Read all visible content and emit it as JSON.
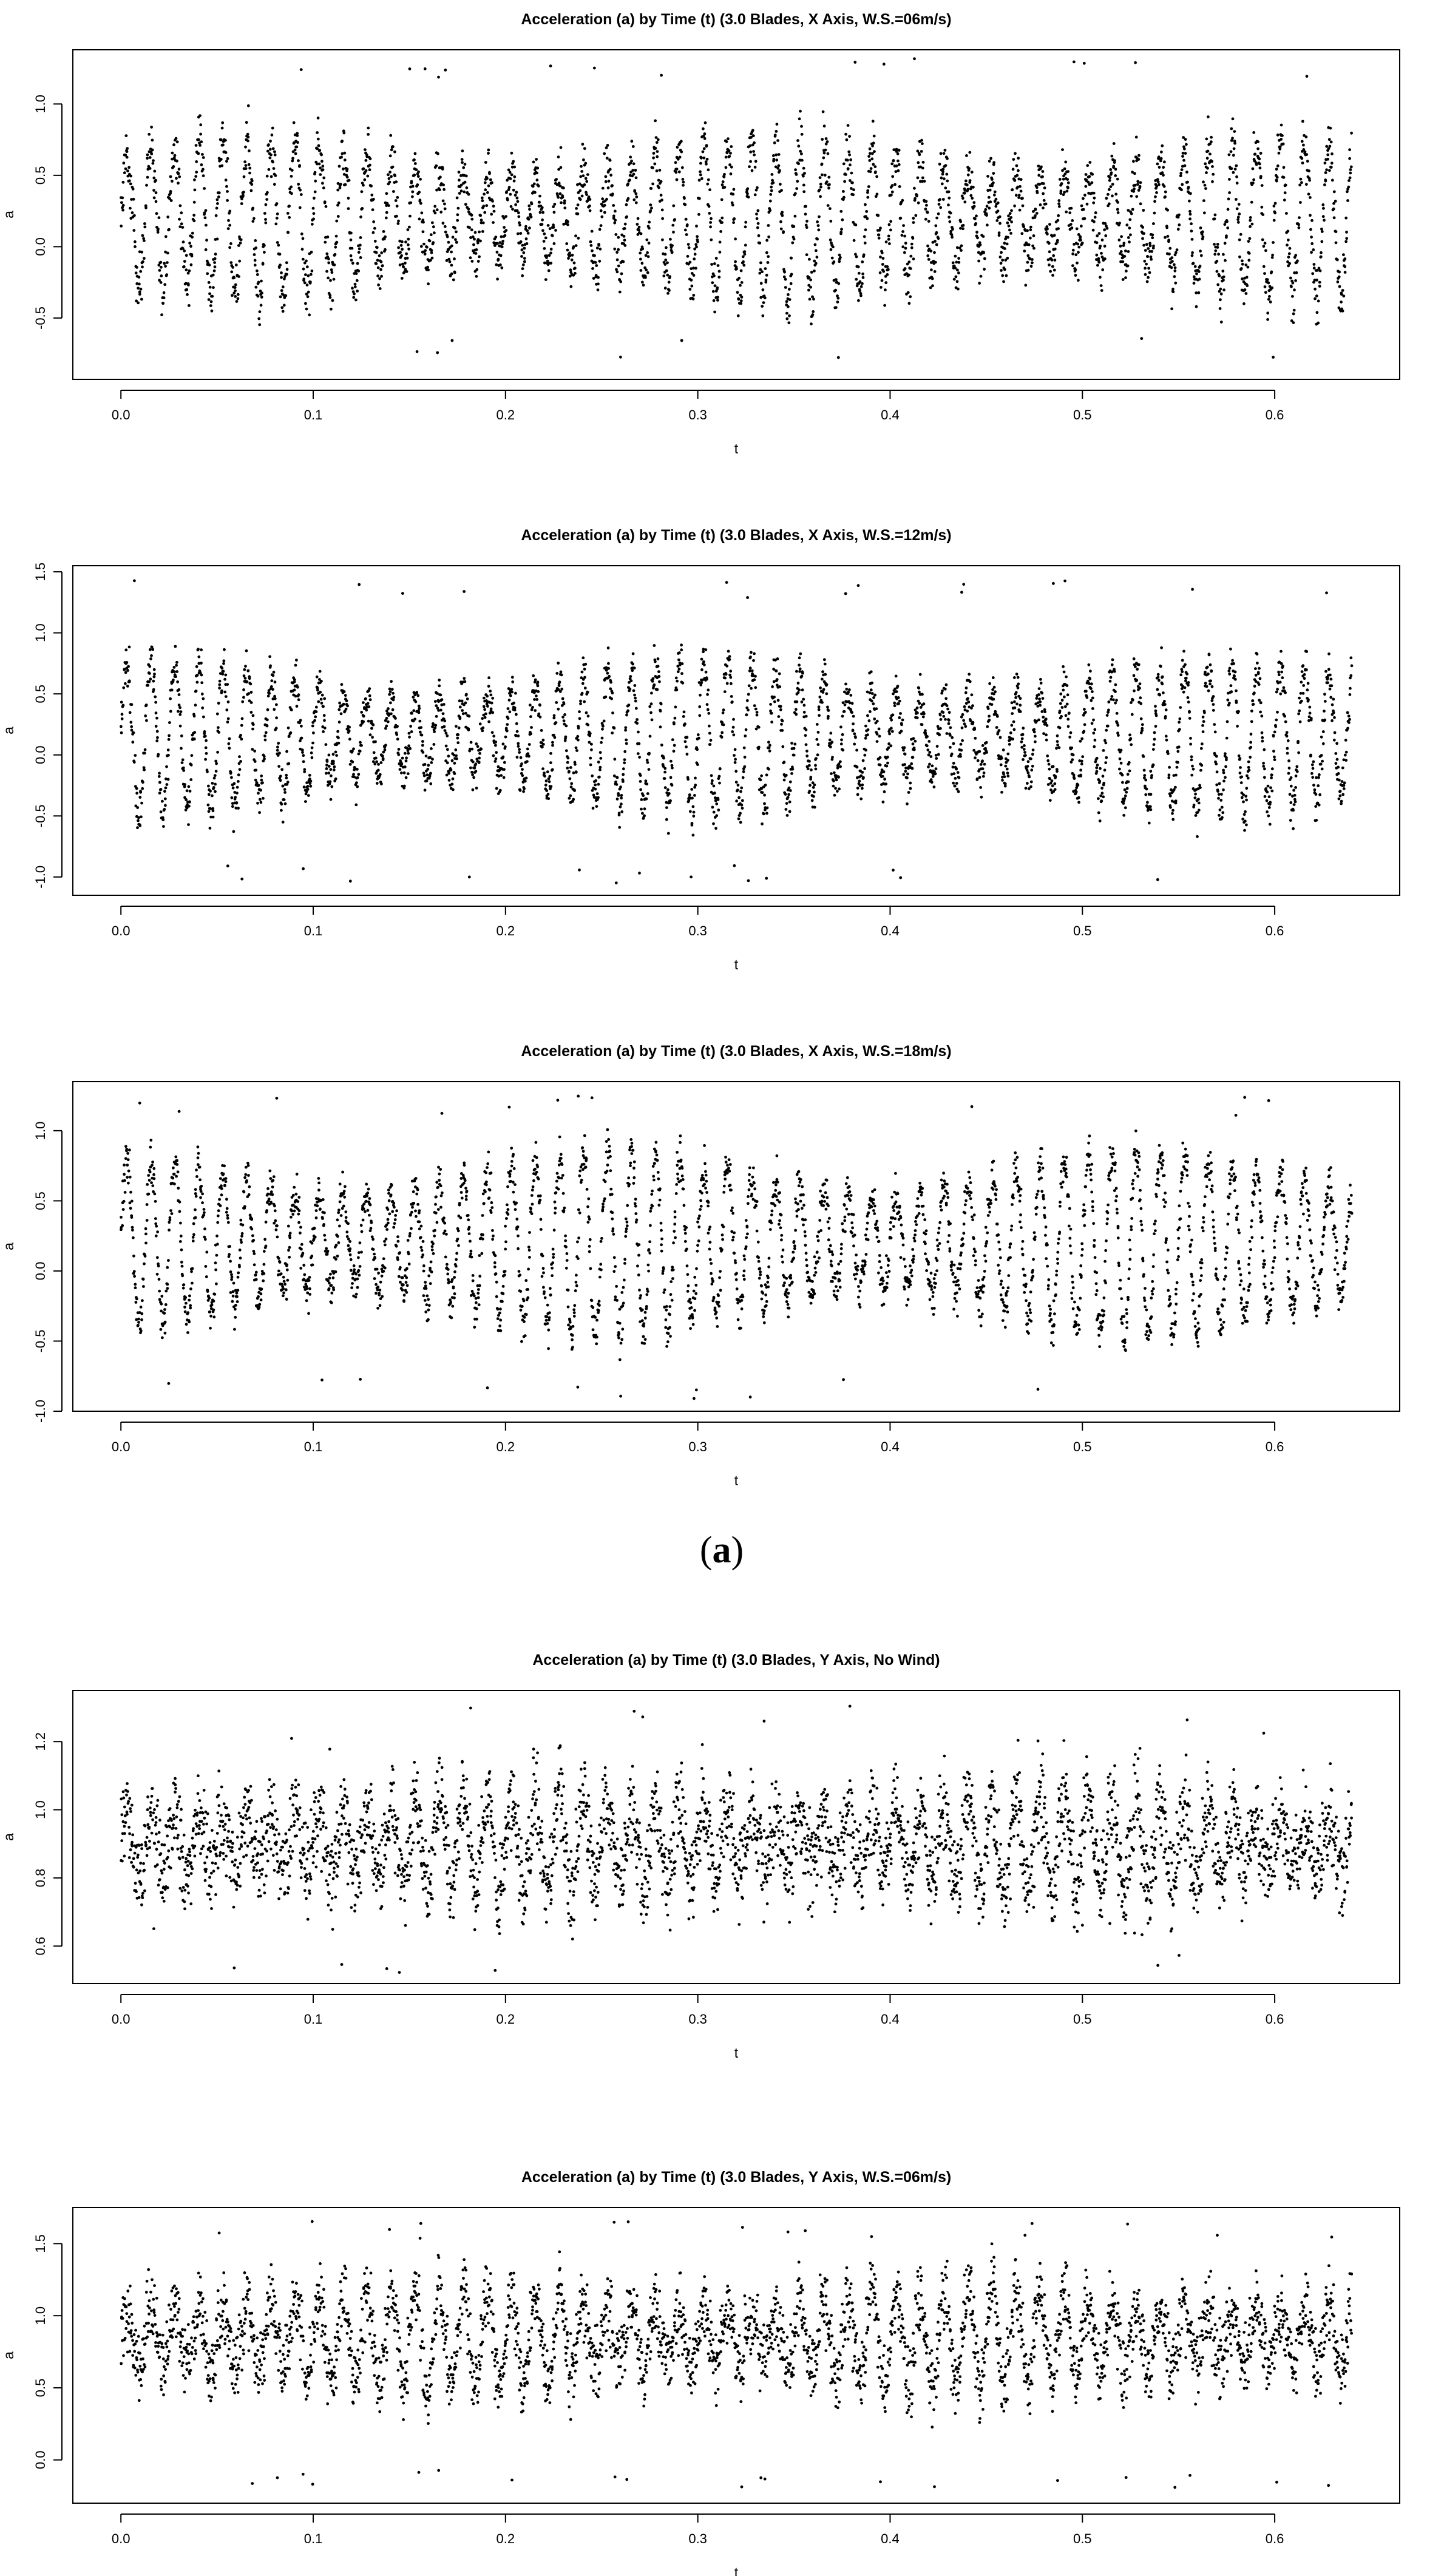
{
  "caption": {
    "open": "(",
    "letter": "a",
    "close": ")"
  },
  "chart_data": [
    {
      "type": "scatter",
      "title": "Acceleration (a) by Time (t) (3.0 Blades, X Axis, W.S.=06m/s)",
      "xlabel": "t",
      "ylabel": "a",
      "xlim": [
        -0.025,
        0.665
      ],
      "ylim": [
        -0.93,
        1.38
      ],
      "xticks": [
        "0.0",
        "0.1",
        "0.2",
        "0.3",
        "0.4",
        "0.5",
        "0.6"
      ],
      "yticks": [
        "-0.5",
        "0.0",
        "0.5",
        "1.0"
      ],
      "signal": {
        "t_start": 0.0,
        "t_end": 0.64,
        "period_s": 0.0125,
        "mean": 0.2,
        "amplitude": 0.55,
        "noise": 0.12,
        "outlier_min": -0.78,
        "outlier_max": 1.33,
        "points": 3200
      },
      "grid": false,
      "legend": "none",
      "point_color": "#000000"
    },
    {
      "type": "scatter",
      "title": "Acceleration (a) by Time (t) (3.0 Blades, X Axis, W.S.=12m/s)",
      "xlabel": "t",
      "ylabel": "a",
      "xlim": [
        -0.025,
        0.665
      ],
      "ylim": [
        -1.15,
        1.55
      ],
      "xticks": [
        "0.0",
        "0.1",
        "0.2",
        "0.3",
        "0.4",
        "0.5",
        "0.6"
      ],
      "yticks": [
        "-1.0",
        "-0.5",
        "0.0",
        "0.5",
        "1.0",
        "1.5"
      ],
      "signal": {
        "t_start": 0.0,
        "t_end": 0.64,
        "period_s": 0.0125,
        "mean": 0.15,
        "amplitude": 0.6,
        "noise": 0.12,
        "outlier_min": -1.05,
        "outlier_max": 1.43,
        "points": 3200
      },
      "grid": false,
      "legend": "none",
      "point_color": "#000000"
    },
    {
      "type": "scatter",
      "title": "Acceleration (a) by Time (t) (3.0 Blades, X Axis, W.S.=18m/s)",
      "xlabel": "t",
      "ylabel": "a",
      "xlim": [
        -0.025,
        0.665
      ],
      "ylim": [
        -1.0,
        1.35
      ],
      "xticks": [
        "0.0",
        "0.1",
        "0.2",
        "0.3",
        "0.4",
        "0.5",
        "0.6"
      ],
      "yticks": [
        "-1.0",
        "-0.5",
        "0.0",
        "0.5",
        "1.0"
      ],
      "signal": {
        "t_start": 0.0,
        "t_end": 0.64,
        "period_s": 0.0125,
        "mean": 0.2,
        "amplitude": 0.65,
        "noise": 0.1,
        "outlier_min": -0.92,
        "outlier_max": 1.25,
        "points": 3200
      },
      "grid": false,
      "legend": "none",
      "point_color": "#000000"
    },
    {
      "type": "scatter",
      "title": "Acceleration (a) by Time (t) (3.0 Blades, Y Axis, No Wind)",
      "xlabel": "t",
      "ylabel": "a",
      "xlim": [
        -0.025,
        0.665
      ],
      "ylim": [
        0.49,
        1.35
      ],
      "xticks": [
        "0.0",
        "0.1",
        "0.2",
        "0.3",
        "0.4",
        "0.5",
        "0.6"
      ],
      "yticks": [
        "0.6",
        "0.8",
        "1.0",
        "1.2"
      ],
      "signal": {
        "t_start": 0.0,
        "t_end": 0.64,
        "period_s": 0.0125,
        "mean": 0.9,
        "amplitude": 0.15,
        "noise": 0.08,
        "outlier_min": 0.52,
        "outlier_max": 1.32,
        "points": 3600
      },
      "grid": false,
      "legend": "none",
      "point_color": "#000000"
    },
    {
      "type": "scatter",
      "title": "Acceleration (a) by Time (t) (3.0 Blades, Y Axis, W.S.=06m/s)",
      "xlabel": "t",
      "ylabel": "a",
      "xlim": [
        -0.025,
        0.665
      ],
      "ylim": [
        -0.3,
        1.75
      ],
      "xticks": [
        "0.0",
        "0.1",
        "0.2",
        "0.3",
        "0.4",
        "0.5",
        "0.6"
      ],
      "yticks": [
        "0.0",
        "0.5",
        "1.0",
        "1.5"
      ],
      "signal": {
        "t_start": 0.0,
        "t_end": 0.64,
        "period_s": 0.0125,
        "mean": 0.85,
        "amplitude": 0.35,
        "noise": 0.15,
        "outlier_min": -0.2,
        "outlier_max": 1.68,
        "points": 3400
      },
      "grid": false,
      "legend": "none",
      "point_color": "#000000"
    }
  ]
}
